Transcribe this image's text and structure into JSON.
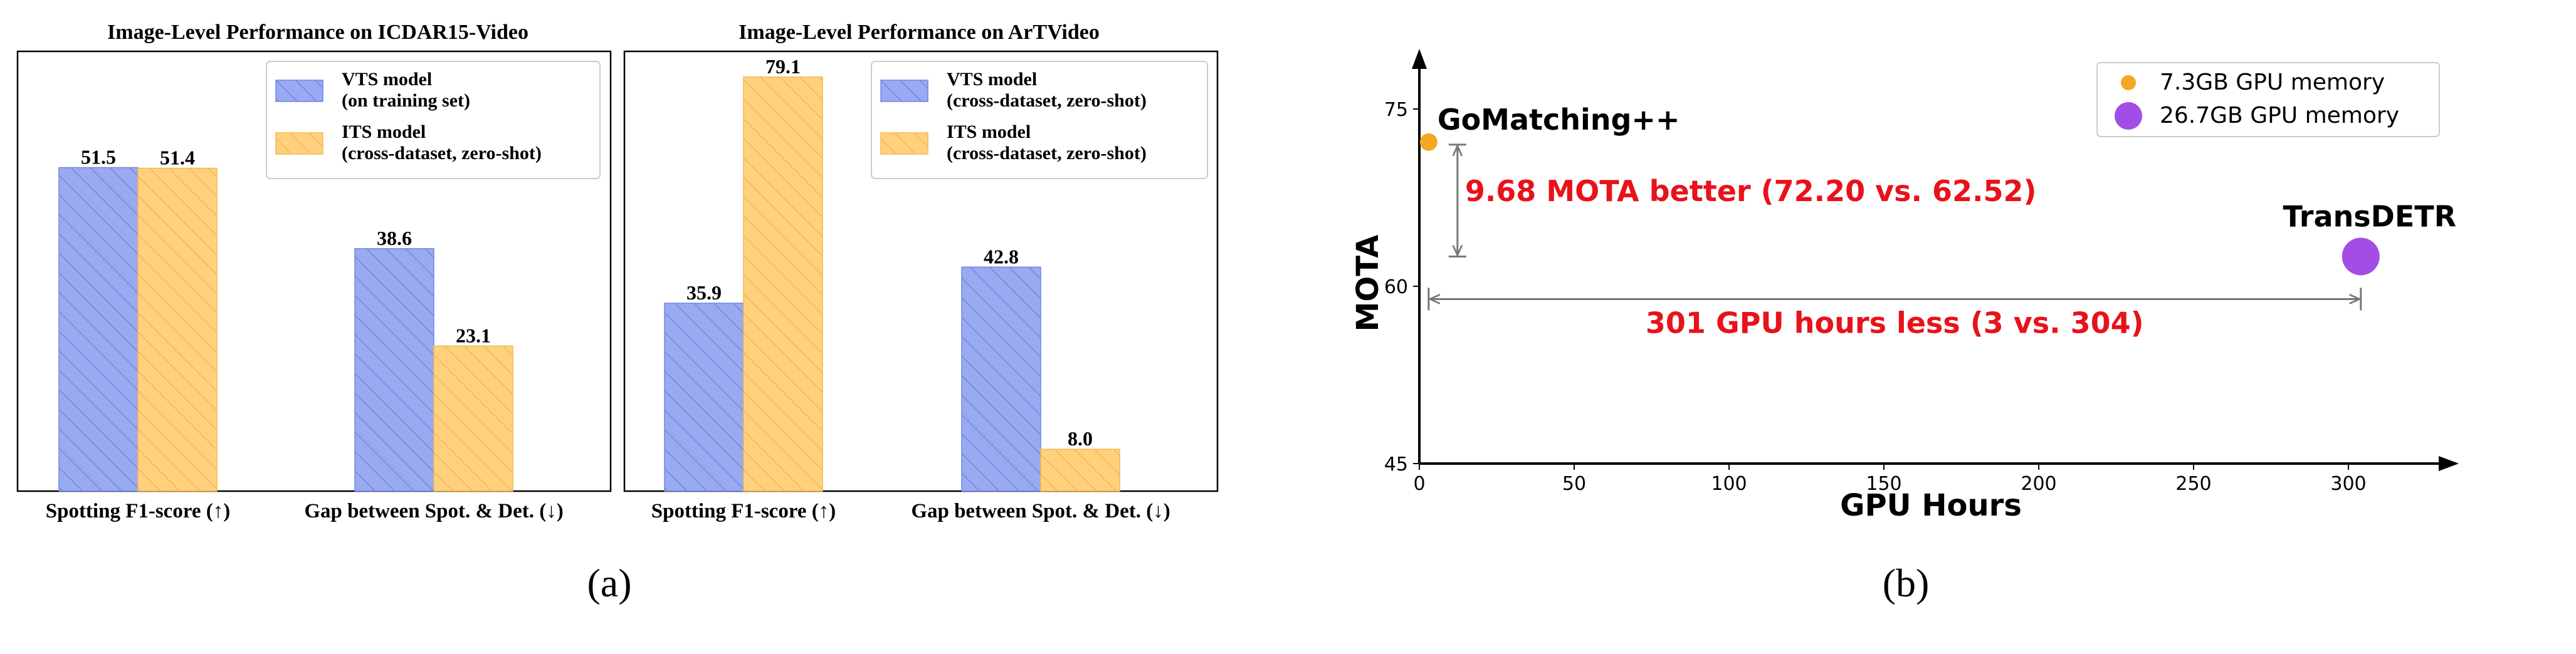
{
  "colors": {
    "vts": "#9aaaf0",
    "vts_edge": "#6f86e8",
    "its": "#ffd17f",
    "its_edge": "#f5b84a",
    "annotation": "#e8121a",
    "small_marker": "#f5a623",
    "large_marker": "#a24de6"
  },
  "captions": {
    "a": "(a)",
    "b": "(b)"
  },
  "chart_data": [
    {
      "type": "bar",
      "title": "Image-Level Performance on ICDAR15-Video",
      "categories": [
        "Spotting F1-score (↑)",
        "Gap between Spot. & Det. (↓)"
      ],
      "series": [
        {
          "name": "VTS model\n(on training set)",
          "values": [
            51.5,
            38.6
          ],
          "value_labels": [
            "51.5",
            "38.6"
          ]
        },
        {
          "name": "ITS model\n(cross-dataset, zero-shot)",
          "values": [
            51.4,
            23.1
          ],
          "value_labels": [
            "51.4",
            "23.1"
          ]
        }
      ],
      "ylim": [
        0,
        70
      ],
      "legend": "top-right"
    },
    {
      "type": "bar",
      "title": "Image-Level Performance on ArTVideo",
      "categories": [
        "Spotting F1-score (↑)",
        "Gap between Spot. & Det. (↓)"
      ],
      "series": [
        {
          "name": "VTS model\n(cross-dataset, zero-shot)",
          "values": [
            35.9,
            42.8
          ],
          "value_labels": [
            "35.9",
            "42.8"
          ]
        },
        {
          "name": "ITS model\n(cross-dataset, zero-shot)",
          "values": [
            79.1,
            8.0
          ],
          "value_labels": [
            "79.1",
            "8.0"
          ]
        }
      ],
      "ylim": [
        0,
        84
      ],
      "legend": "top-right"
    },
    {
      "type": "scatter",
      "xlabel": "GPU Hours",
      "ylabel": "MOTA",
      "xlim": [
        0,
        340
      ],
      "ylim": [
        45,
        80
      ],
      "x_ticks": [
        0,
        50,
        100,
        150,
        200,
        250,
        300
      ],
      "y_ticks": [
        45,
        60,
        75
      ],
      "points": [
        {
          "label": "GoMatching++",
          "x": 3,
          "y": 72.2,
          "marker": "small"
        },
        {
          "label": "TransDETR",
          "x": 304,
          "y": 62.52,
          "marker": "large"
        }
      ],
      "legend_entries": [
        "7.3GB GPU memory",
        "26.7GB GPU memory"
      ],
      "legend": "top-right",
      "annotations": [
        "9.68 MOTA better (72.20 vs. 62.52)",
        "301 GPU hours less (3 vs. 304)"
      ]
    }
  ]
}
